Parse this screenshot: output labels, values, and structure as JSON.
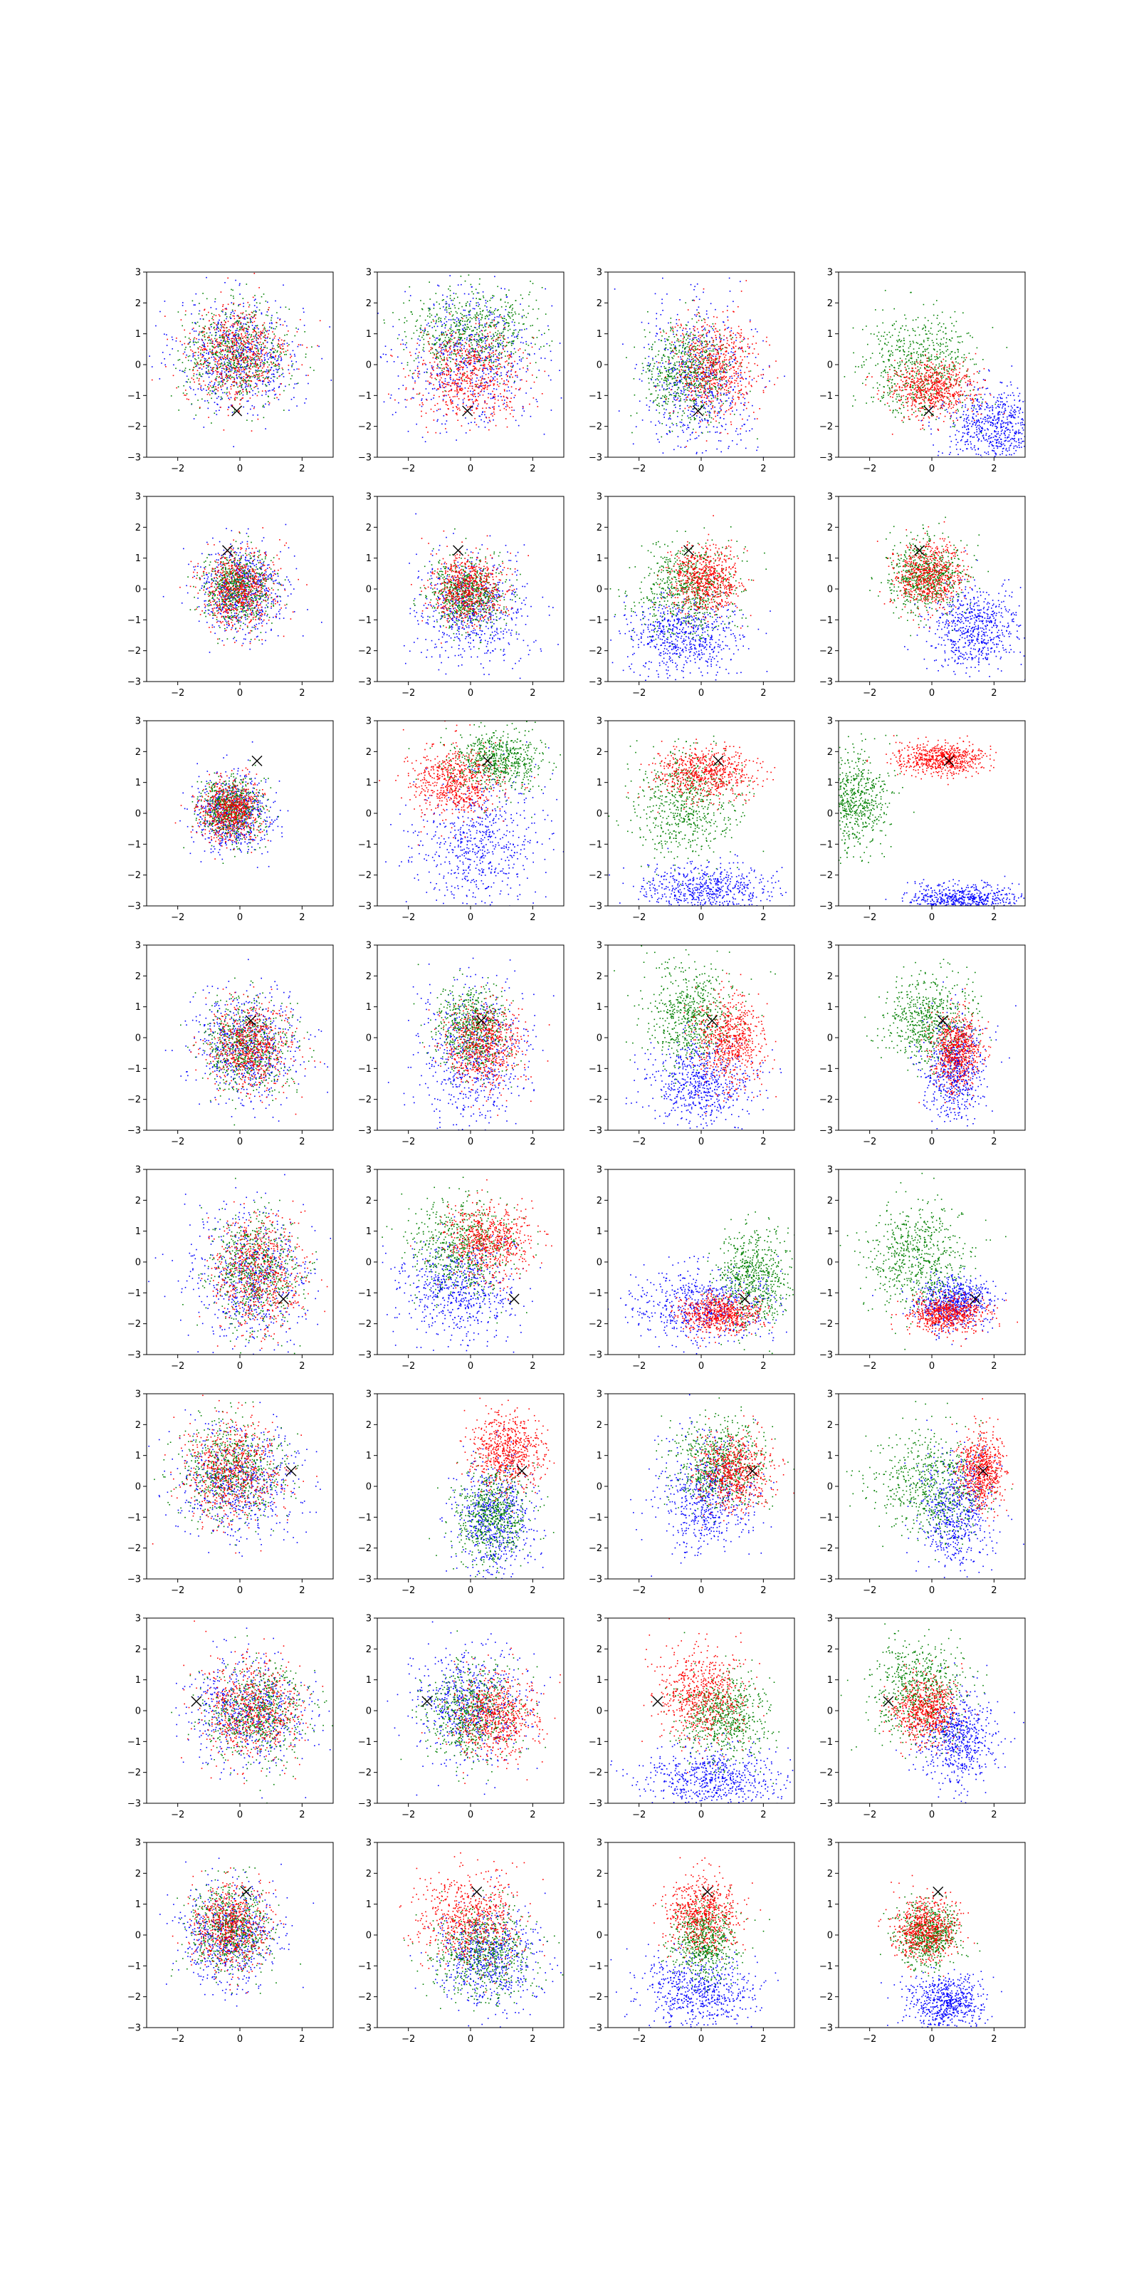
{
  "chart_data": {
    "type": "scatter",
    "layout": {
      "rows": 8,
      "cols": 4
    },
    "axis": {
      "xlim": [
        -3,
        3
      ],
      "ylim": [
        -3,
        3
      ],
      "xticks": [
        -2,
        0,
        2
      ],
      "yticks": [
        -3,
        -2,
        -1,
        0,
        1,
        2,
        3
      ],
      "grid": false
    },
    "title": "",
    "xlabel": "",
    "ylabel": "",
    "colors": {
      "blue": "#0000ff",
      "green": "#008000",
      "red": "#ff0000",
      "marker": "#000000"
    },
    "marker_symbol": "x",
    "markers": [
      {
        "x": -0.1,
        "y": -1.5
      },
      {
        "x": -0.4,
        "y": 1.25
      },
      {
        "x": 0.55,
        "y": 1.7
      },
      {
        "x": 0.35,
        "y": 0.55
      },
      {
        "x": 1.4,
        "y": -1.2
      },
      {
        "x": 1.65,
        "y": 0.5
      },
      {
        "x": -1.4,
        "y": 0.3
      },
      {
        "x": 0.2,
        "y": 1.4
      }
    ],
    "panels": [
      [
        {
          "blue": {
            "cx": 0.0,
            "cy": 0.3,
            "sx": 1.0,
            "sy": 0.9
          },
          "green": {
            "cx": -0.1,
            "cy": 0.35,
            "sx": 0.85,
            "sy": 0.8
          },
          "red": {
            "cx": -0.1,
            "cy": 0.3,
            "sx": 0.85,
            "sy": 0.8
          }
        },
        {
          "blue": {
            "cx": 0.0,
            "cy": 0.2,
            "sx": 1.1,
            "sy": 1.1
          },
          "green": {
            "cx": 0.0,
            "cy": 1.1,
            "sx": 1.0,
            "sy": 0.7
          },
          "red": {
            "cx": 0.0,
            "cy": -0.3,
            "sx": 0.9,
            "sy": 0.7
          }
        },
        {
          "blue": {
            "cx": -0.1,
            "cy": -0.5,
            "sx": 0.9,
            "sy": 1.2
          },
          "green": {
            "cx": -0.4,
            "cy": -0.3,
            "sx": 0.7,
            "sy": 0.8
          },
          "red": {
            "cx": 0.4,
            "cy": -0.1,
            "sx": 0.7,
            "sy": 0.8
          }
        },
        {
          "blue": {
            "cx": 2.0,
            "cy": -2.0,
            "sx": 0.8,
            "sy": 0.6
          },
          "green": {
            "cx": -0.4,
            "cy": 0.0,
            "sx": 0.9,
            "sy": 0.8
          },
          "red": {
            "cx": 0.0,
            "cy": -0.8,
            "sx": 0.7,
            "sy": 0.45
          }
        }
      ],
      [
        {
          "blue": {
            "cx": 0.0,
            "cy": 0.0,
            "sx": 0.7,
            "sy": 0.7
          },
          "green": {
            "cx": -0.1,
            "cy": 0.0,
            "sx": 0.55,
            "sy": 0.6
          },
          "red": {
            "cx": -0.1,
            "cy": 0.0,
            "sx": 0.6,
            "sy": 0.65
          }
        },
        {
          "blue": {
            "cx": 0.1,
            "cy": -0.7,
            "sx": 0.9,
            "sy": 0.9
          },
          "green": {
            "cx": -0.1,
            "cy": -0.2,
            "sx": 0.6,
            "sy": 0.55
          },
          "red": {
            "cx": -0.1,
            "cy": 0.0,
            "sx": 0.6,
            "sy": 0.55
          }
        },
        {
          "blue": {
            "cx": -0.6,
            "cy": -1.5,
            "sx": 0.9,
            "sy": 0.6
          },
          "green": {
            "cx": -0.5,
            "cy": 0.0,
            "sx": 0.8,
            "sy": 0.7
          },
          "red": {
            "cx": 0.1,
            "cy": 0.3,
            "sx": 0.55,
            "sy": 0.55
          }
        },
        {
          "blue": {
            "cx": 1.3,
            "cy": -1.3,
            "sx": 0.75,
            "sy": 0.7
          },
          "green": {
            "cx": -0.2,
            "cy": 0.4,
            "sx": 0.6,
            "sy": 0.6
          },
          "red": {
            "cx": -0.1,
            "cy": 0.4,
            "sx": 0.55,
            "sy": 0.55
          }
        }
      ],
      [
        {
          "blue": {
            "cx": -0.2,
            "cy": 0.0,
            "sx": 0.6,
            "sy": 0.6
          },
          "green": {
            "cx": -0.3,
            "cy": 0.1,
            "sx": 0.5,
            "sy": 0.5
          },
          "red": {
            "cx": -0.3,
            "cy": 0.1,
            "sx": 0.5,
            "sy": 0.5
          }
        },
        {
          "blue": {
            "cx": 0.3,
            "cy": -1.0,
            "sx": 1.0,
            "sy": 1.1
          },
          "green": {
            "cx": 0.9,
            "cy": 1.7,
            "sx": 0.75,
            "sy": 0.5
          },
          "red": {
            "cx": -0.5,
            "cy": 1.0,
            "sx": 0.7,
            "sy": 0.55
          }
        },
        {
          "blue": {
            "cx": 0.3,
            "cy": -2.5,
            "sx": 1.1,
            "sy": 0.4
          },
          "green": {
            "cx": -0.5,
            "cy": 0.3,
            "sx": 0.8,
            "sy": 0.9
          },
          "red": {
            "cx": 0.1,
            "cy": 1.3,
            "sx": 0.8,
            "sy": 0.4
          }
        },
        {
          "blue": {
            "cx": 1.0,
            "cy": -2.8,
            "sx": 0.9,
            "sy": 0.25
          },
          "green": {
            "cx": -2.5,
            "cy": 0.4,
            "sx": 0.55,
            "sy": 0.8
          },
          "red": {
            "cx": 0.3,
            "cy": 1.75,
            "sx": 0.7,
            "sy": 0.25
          }
        }
      ],
      [
        {
          "blue": {
            "cx": 0.2,
            "cy": -0.3,
            "sx": 0.85,
            "sy": 0.9
          },
          "green": {
            "cx": 0.2,
            "cy": -0.3,
            "sx": 0.7,
            "sy": 0.75
          },
          "red": {
            "cx": 0.3,
            "cy": -0.3,
            "sx": 0.65,
            "sy": 0.7
          }
        },
        {
          "blue": {
            "cx": 0.1,
            "cy": -0.5,
            "sx": 0.9,
            "sy": 1.2
          },
          "green": {
            "cx": 0.1,
            "cy": 0.3,
            "sx": 0.6,
            "sy": 0.7
          },
          "red": {
            "cx": 0.4,
            "cy": -0.2,
            "sx": 0.6,
            "sy": 0.7
          }
        },
        {
          "blue": {
            "cx": 0.0,
            "cy": -1.5,
            "sx": 0.9,
            "sy": 0.7
          },
          "green": {
            "cx": -0.3,
            "cy": 0.7,
            "sx": 0.7,
            "sy": 0.8
          },
          "red": {
            "cx": 0.9,
            "cy": -0.1,
            "sx": 0.55,
            "sy": 0.7
          }
        },
        {
          "blue": {
            "cx": 0.7,
            "cy": -1.0,
            "sx": 0.5,
            "sy": 0.8
          },
          "green": {
            "cx": -0.1,
            "cy": 0.5,
            "sx": 0.7,
            "sy": 0.7
          },
          "red": {
            "cx": 0.8,
            "cy": -0.4,
            "sx": 0.4,
            "sy": 0.6
          }
        }
      ],
      [
        {
          "blue": {
            "cx": 0.4,
            "cy": -0.5,
            "sx": 0.95,
            "sy": 1.1
          },
          "green": {
            "cx": 0.5,
            "cy": -0.3,
            "sx": 0.7,
            "sy": 0.9
          },
          "red": {
            "cx": 0.6,
            "cy": -0.4,
            "sx": 0.75,
            "sy": 0.9
          }
        },
        {
          "blue": {
            "cx": -0.4,
            "cy": -0.9,
            "sx": 0.9,
            "sy": 0.8
          },
          "green": {
            "cx": -0.3,
            "cy": 0.5,
            "sx": 0.8,
            "sy": 0.8
          },
          "red": {
            "cx": 0.6,
            "cy": 0.7,
            "sx": 0.7,
            "sy": 0.6
          }
        },
        {
          "blue": {
            "cx": 0.0,
            "cy": -1.4,
            "sx": 1.1,
            "sy": 0.6
          },
          "green": {
            "cx": 1.7,
            "cy": -0.5,
            "sx": 0.6,
            "sy": 0.8
          },
          "red": {
            "cx": 0.6,
            "cy": -1.7,
            "sx": 0.65,
            "sy": 0.3
          }
        },
        {
          "blue": {
            "cx": 0.7,
            "cy": -1.3,
            "sx": 0.6,
            "sy": 0.4
          },
          "green": {
            "cx": -0.5,
            "cy": 0.1,
            "sx": 0.8,
            "sy": 0.9
          },
          "red": {
            "cx": 0.5,
            "cy": -1.7,
            "sx": 0.6,
            "sy": 0.3
          }
        }
      ],
      [
        {
          "blue": {
            "cx": 0.0,
            "cy": 0.2,
            "sx": 1.0,
            "sy": 0.95
          },
          "green": {
            "cx": -0.3,
            "cy": 0.5,
            "sx": 0.8,
            "sy": 0.8
          },
          "red": {
            "cx": -0.2,
            "cy": 0.5,
            "sx": 0.8,
            "sy": 0.8
          }
        },
        {
          "blue": {
            "cx": 0.8,
            "cy": -1.0,
            "sx": 0.6,
            "sy": 0.9
          },
          "green": {
            "cx": 0.7,
            "cy": -0.9,
            "sx": 0.6,
            "sy": 0.8
          },
          "red": {
            "cx": 1.2,
            "cy": 1.2,
            "sx": 0.6,
            "sy": 0.6
          }
        },
        {
          "blue": {
            "cx": 0.2,
            "cy": -0.3,
            "sx": 0.8,
            "sy": 1.0
          },
          "green": {
            "cx": 0.6,
            "cy": 0.8,
            "sx": 0.7,
            "sy": 0.7
          },
          "red": {
            "cx": 1.1,
            "cy": 0.5,
            "sx": 0.55,
            "sy": 0.6
          }
        },
        {
          "blue": {
            "cx": 0.8,
            "cy": -0.8,
            "sx": 0.6,
            "sy": 0.9
          },
          "green": {
            "cx": 0.0,
            "cy": 0.0,
            "sx": 0.9,
            "sy": 0.9
          },
          "red": {
            "cx": 1.6,
            "cy": 0.5,
            "sx": 0.35,
            "sy": 0.6
          }
        }
      ],
      [
        {
          "blue": {
            "cx": 0.3,
            "cy": 0.0,
            "sx": 1.0,
            "sy": 0.9
          },
          "green": {
            "cx": 0.5,
            "cy": -0.1,
            "sx": 0.8,
            "sy": 0.8
          },
          "red": {
            "cx": 0.4,
            "cy": 0.0,
            "sx": 0.8,
            "sy": 0.8
          }
        },
        {
          "blue": {
            "cx": 0.0,
            "cy": 0.2,
            "sx": 0.9,
            "sy": 0.9
          },
          "green": {
            "cx": 0.0,
            "cy": 0.0,
            "sx": 0.75,
            "sy": 0.75
          },
          "red": {
            "cx": 0.8,
            "cy": -0.2,
            "sx": 0.7,
            "sy": 0.7
          }
        },
        {
          "blue": {
            "cx": 0.3,
            "cy": -2.2,
            "sx": 1.1,
            "sy": 0.5
          },
          "green": {
            "cx": 0.7,
            "cy": -0.2,
            "sx": 0.7,
            "sy": 0.7
          },
          "red": {
            "cx": 0.0,
            "cy": 0.5,
            "sx": 0.7,
            "sy": 0.8
          }
        },
        {
          "blue": {
            "cx": 0.8,
            "cy": -0.9,
            "sx": 0.6,
            "sy": 0.7
          },
          "green": {
            "cx": -0.4,
            "cy": 0.7,
            "sx": 0.75,
            "sy": 0.8
          },
          "red": {
            "cx": -0.2,
            "cy": 0.0,
            "sx": 0.5,
            "sy": 0.55
          }
        }
      ],
      [
        {
          "blue": {
            "cx": -0.3,
            "cy": 0.0,
            "sx": 0.75,
            "sy": 0.8
          },
          "green": {
            "cx": -0.3,
            "cy": 0.2,
            "sx": 0.65,
            "sy": 0.7
          },
          "red": {
            "cx": -0.3,
            "cy": 0.3,
            "sx": 0.6,
            "sy": 0.7
          }
        },
        {
          "blue": {
            "cx": 0.6,
            "cy": -0.7,
            "sx": 0.8,
            "sy": 0.8
          },
          "green": {
            "cx": 0.4,
            "cy": -0.5,
            "sx": 0.8,
            "sy": 0.8
          },
          "red": {
            "cx": -0.1,
            "cy": 0.5,
            "sx": 0.8,
            "sy": 0.8
          }
        },
        {
          "blue": {
            "cx": -0.1,
            "cy": -1.8,
            "sx": 0.9,
            "sy": 0.6
          },
          "green": {
            "cx": 0.1,
            "cy": -0.2,
            "sx": 0.5,
            "sy": 0.6
          },
          "red": {
            "cx": 0.0,
            "cy": 0.7,
            "sx": 0.6,
            "sy": 0.6
          }
        },
        {
          "blue": {
            "cx": 0.5,
            "cy": -2.2,
            "sx": 0.6,
            "sy": 0.45
          },
          "green": {
            "cx": -0.1,
            "cy": 0.0,
            "sx": 0.5,
            "sy": 0.5
          },
          "red": {
            "cx": -0.2,
            "cy": 0.2,
            "sx": 0.5,
            "sy": 0.5
          }
        }
      ]
    ]
  }
}
